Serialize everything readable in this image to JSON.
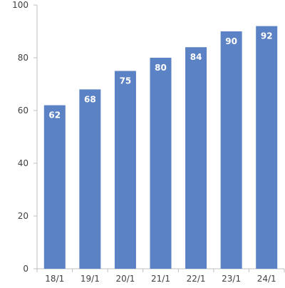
{
  "chart_data": {
    "type": "bar",
    "title": "",
    "xlabel": "",
    "ylabel": "",
    "categories": [
      "18/1",
      "19/1",
      "20/1",
      "21/1",
      "22/1",
      "23/1",
      "24/1"
    ],
    "series": [
      {
        "values": [
          62,
          68,
          75,
          80,
          84,
          90,
          92
        ],
        "color": "#5b82c4"
      }
    ],
    "ylim": [
      0,
      100
    ],
    "yticks": [
      0,
      20,
      40,
      60,
      80,
      100
    ],
    "data_labels": true,
    "grid": false,
    "legend": "none",
    "colors": {
      "bar": "#5b82c4",
      "axis": "#bfbfbf",
      "tick_text": "#404040",
      "data_label_text": "#ffffff"
    }
  }
}
